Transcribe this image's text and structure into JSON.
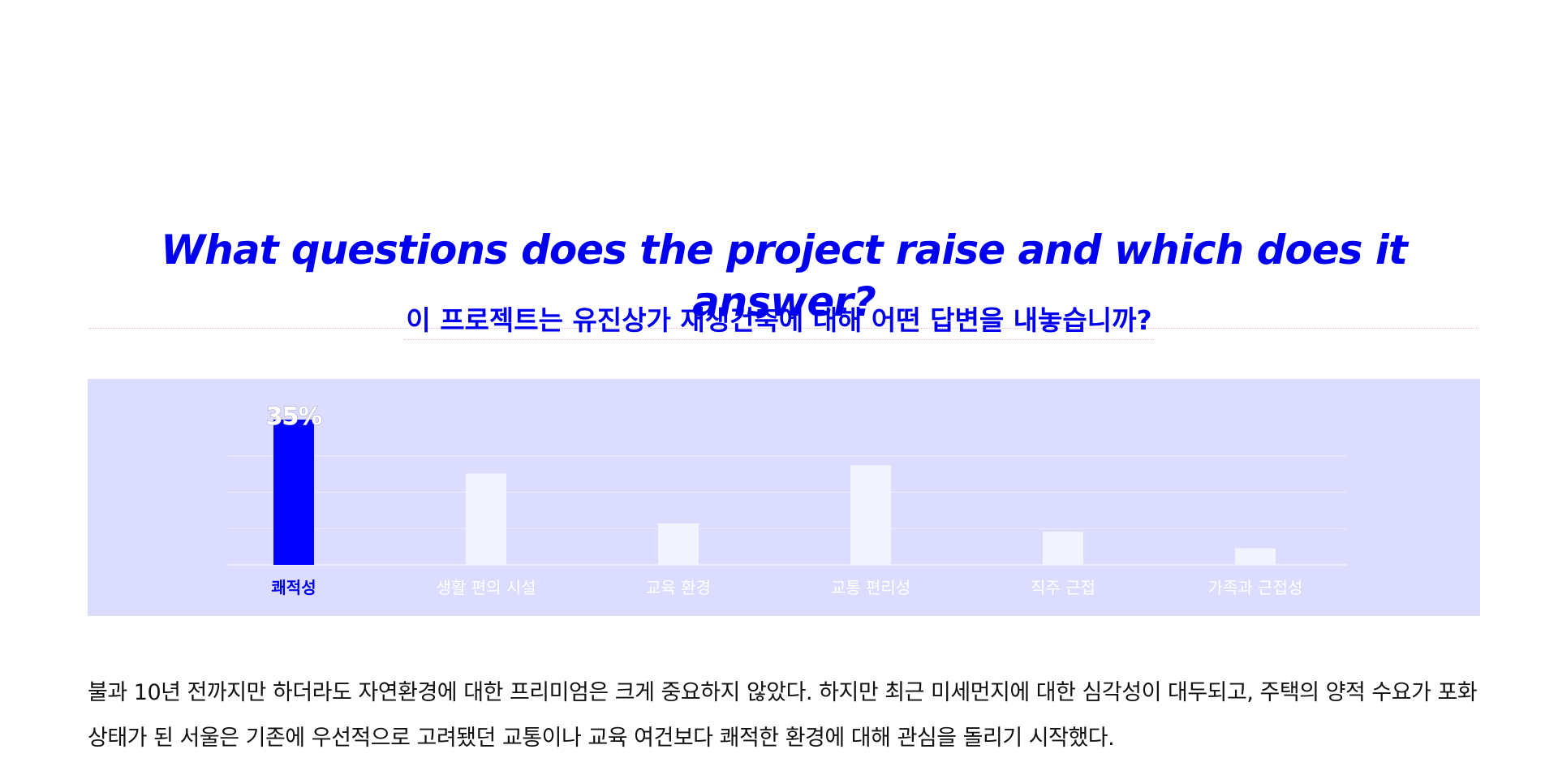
{
  "header": {
    "title_en": "What questions does the project raise and which does it answer?",
    "title_ko": "이 프로젝트는 유진상가 재생건축에 대해 어떤 답변을 내놓습니까?"
  },
  "chart_data": {
    "type": "bar",
    "categories": [
      "쾌적성",
      "생활 편의 시설",
      "교육 환경",
      "교통 편리성",
      "직주 근접",
      "가족과 근접성"
    ],
    "values": [
      35,
      22,
      10,
      24,
      8,
      4
    ],
    "labels": [
      "35%",
      "",
      "",
      "",
      "",
      ""
    ],
    "highlight_index": 0,
    "ylim": [
      0,
      35
    ],
    "grid": true,
    "colors": {
      "highlight": "#0000ff",
      "bar": "#f3f3fe",
      "highlight_label": "#0000ee",
      "label": "#ffffff",
      "panel": "#dcdcfe"
    }
  },
  "body": {
    "paragraph": "불과 10년 전까지만 하더라도 자연환경에 대한 프리미엄은 크게 중요하지 않았다. 하지만 최근 미세먼지에 대한 심각성이 대두되고, 주택의 양적 수요가 포화상태가 된 서울은 기존에 우선적으로 고려됐던 교통이나 교육 여건보다 쾌적한 환경에 대해 관심을 돌리기 시작했다."
  }
}
